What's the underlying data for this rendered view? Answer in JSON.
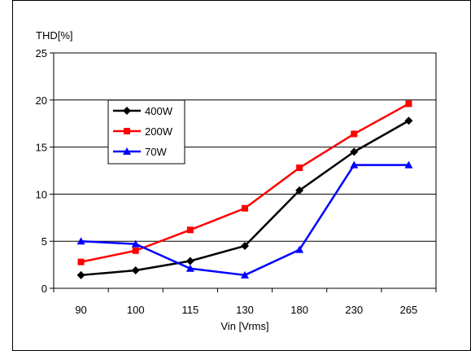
{
  "chart_data": {
    "type": "line",
    "title": "",
    "ylabel": "THD[%]",
    "xlabel": "Vin [Vrms]",
    "categories": [
      "90",
      "100",
      "115",
      "130",
      "180",
      "230",
      "265"
    ],
    "ylim": [
      0,
      25
    ],
    "yticks": [
      0,
      5,
      10,
      15,
      20,
      25
    ],
    "grid": "horizontal",
    "legend_position": "left",
    "series": [
      {
        "name": "400W",
        "color": "#000000",
        "marker": "diamond",
        "values": [
          1.4,
          1.9,
          2.9,
          4.5,
          10.4,
          14.5,
          17.8
        ]
      },
      {
        "name": "200W",
        "color": "#ff0000",
        "marker": "square",
        "values": [
          2.8,
          4.0,
          6.2,
          8.5,
          12.8,
          16.4,
          19.6
        ]
      },
      {
        "name": "70W",
        "color": "#0000ff",
        "marker": "triangle",
        "values": [
          5.0,
          4.7,
          2.1,
          1.4,
          4.1,
          13.1,
          13.1
        ]
      }
    ]
  }
}
